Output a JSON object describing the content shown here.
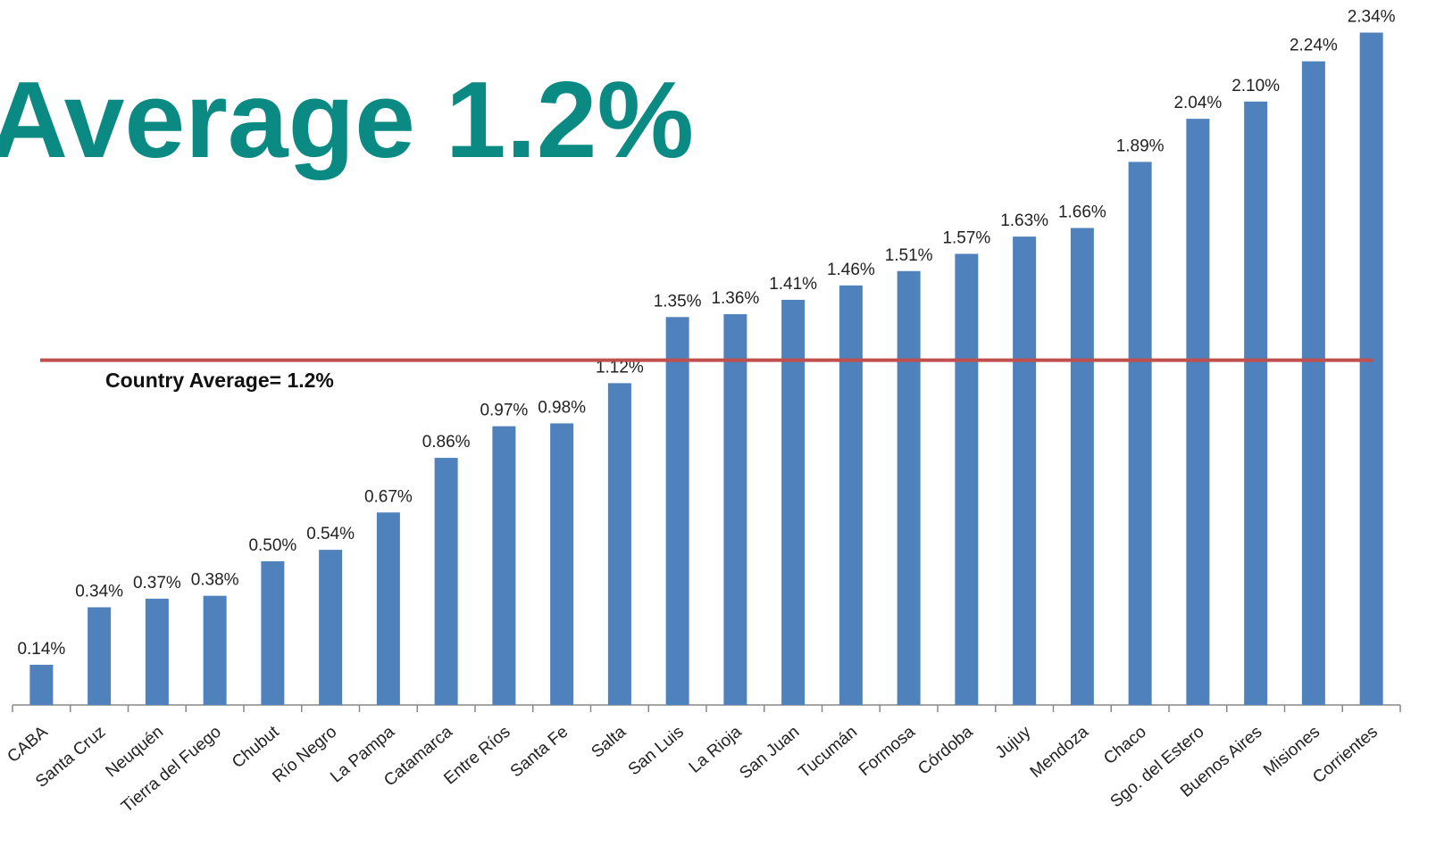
{
  "chart_data": {
    "type": "bar",
    "title": "Average 1.2%",
    "annotation": "Country Average= 1.2%",
    "categories": [
      "CABA",
      "Santa Cruz",
      "Neuquén",
      "Tierra del Fuego",
      "Chubut",
      "Río Negro",
      "La Pampa",
      "Catamarca",
      "Entre Ríos",
      "Santa Fe",
      "Salta",
      "San Luis",
      "La Rioja",
      "San Juan",
      "Tucumán",
      "Formosa",
      "Córdoba",
      "Jujuy",
      "Mendoza",
      "Chaco",
      "Sgo. del Estero",
      "Buenos Aires",
      "Misiones",
      "Corrientes"
    ],
    "values": [
      0.14,
      0.34,
      0.37,
      0.38,
      0.5,
      0.54,
      0.67,
      0.86,
      0.97,
      0.98,
      1.12,
      1.35,
      1.36,
      1.41,
      1.46,
      1.51,
      1.57,
      1.63,
      1.66,
      1.89,
      2.04,
      2.1,
      2.24,
      2.34
    ],
    "value_labels": [
      "0.14%",
      "0.34%",
      "0.37%",
      "0.38%",
      "0.50%",
      "0.54%",
      "0.67%",
      "0.86%",
      "0.97%",
      "0.98%",
      "1.12%",
      "1.35%",
      "1.36%",
      "1.41%",
      "1.46%",
      "1.51%",
      "1.57%",
      "1.63%",
      "1.66%",
      "1.89%",
      "2.04%",
      "2.10%",
      "2.24%",
      "2.34%"
    ],
    "color": "#4f81bd",
    "average_line": {
      "value": 1.2,
      "color": "#c0504d"
    }
  }
}
